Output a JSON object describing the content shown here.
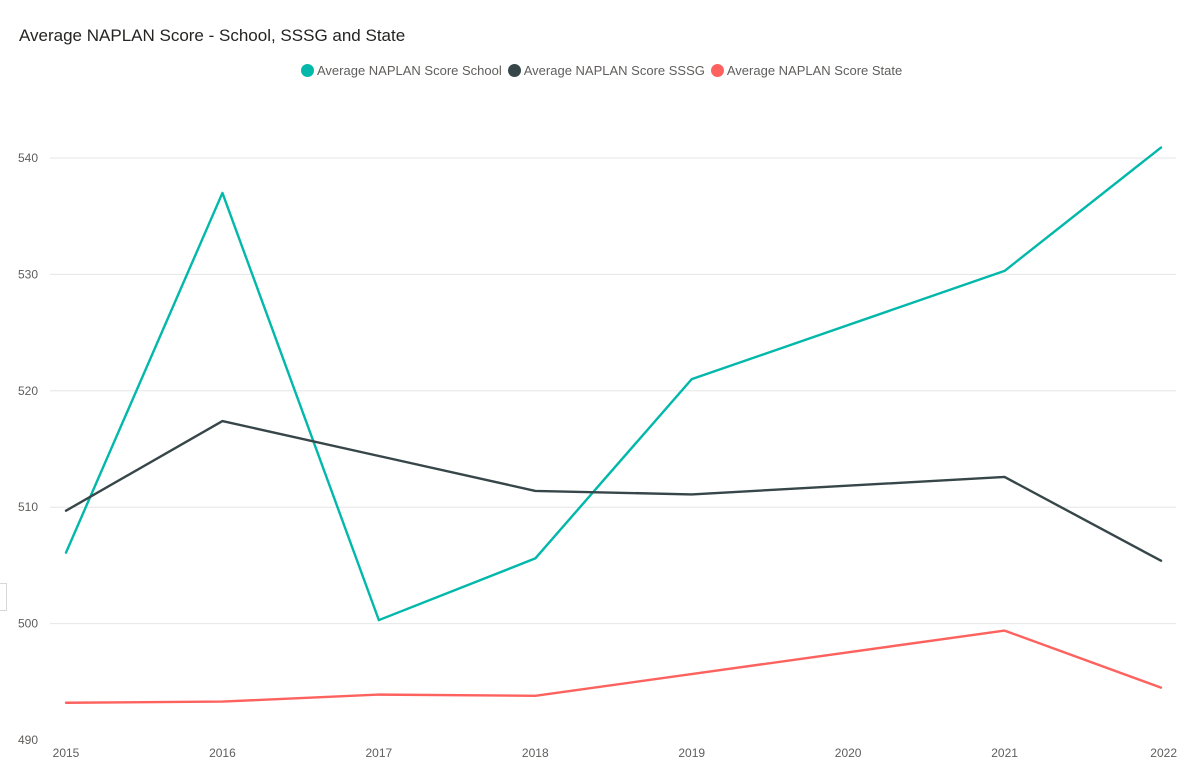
{
  "title": "Average NAPLAN Score - School, SSSG and State",
  "chart_data": {
    "type": "line",
    "title": "Average NAPLAN Score - School, SSSG and State",
    "xlabel": "",
    "ylabel": "",
    "x": [
      "2015",
      "2016",
      "2017",
      "2018",
      "2019",
      "2020",
      "2021",
      "2022"
    ],
    "x_values": [
      2015,
      2016,
      2017,
      2018,
      2019,
      2020,
      2021,
      2022
    ],
    "ylim": [
      490,
      540
    ],
    "y_ticks": [
      490,
      500,
      510,
      520,
      530,
      540
    ],
    "grid": true,
    "legend_position": "top",
    "series": [
      {
        "name": "Average NAPLAN Score School",
        "color": "#01B8AA",
        "points": [
          [
            2015,
            506.1
          ],
          [
            2016,
            537
          ],
          [
            2017,
            500.3
          ],
          [
            2018,
            505.6
          ],
          [
            2019,
            521
          ],
          [
            2021,
            530.3
          ],
          [
            2022,
            540.9
          ]
        ]
      },
      {
        "name": "Average NAPLAN Score SSSG",
        "color": "#374649",
        "points": [
          [
            2015,
            509.7
          ],
          [
            2016,
            517.4
          ],
          [
            2018,
            511.4
          ],
          [
            2019,
            511.1
          ],
          [
            2021,
            512.6
          ],
          [
            2022,
            505.4
          ]
        ]
      },
      {
        "name": "Average NAPLAN Score State",
        "color": "#FD625E",
        "points": [
          [
            2015,
            493.2
          ],
          [
            2016,
            493.3
          ],
          [
            2017,
            493.9
          ],
          [
            2018,
            493.8
          ],
          [
            2021,
            499.4
          ],
          [
            2022,
            494.5
          ]
        ]
      }
    ]
  }
}
